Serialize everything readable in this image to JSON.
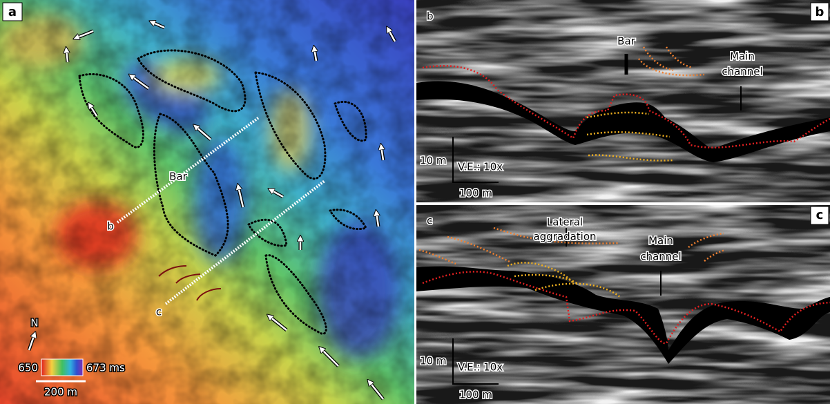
{
  "panels": {
    "a": {
      "label": "a",
      "bar_label": "Bar",
      "line_b": "b",
      "line_c": "c",
      "north": "N",
      "colorbar_min": "650",
      "colorbar_max": "673 ms",
      "scale": "200 m"
    },
    "b": {
      "label": "b",
      "corner_label": "b",
      "bar_label": "Bar",
      "main_channel": [
        "Main",
        "channel"
      ],
      "vertical_scale": "10 m",
      "ve": "V.E.: 10x",
      "horizontal_scale": "100 m"
    },
    "c": {
      "label": "c",
      "corner_label": "c",
      "lateral_aggradation": [
        "Lateral",
        "aggradation"
      ],
      "main_channel": [
        "Main",
        "channel"
      ],
      "vertical_scale": "10 m",
      "ve": "V.E.: 10x",
      "horizontal_scale": "100 m"
    }
  }
}
